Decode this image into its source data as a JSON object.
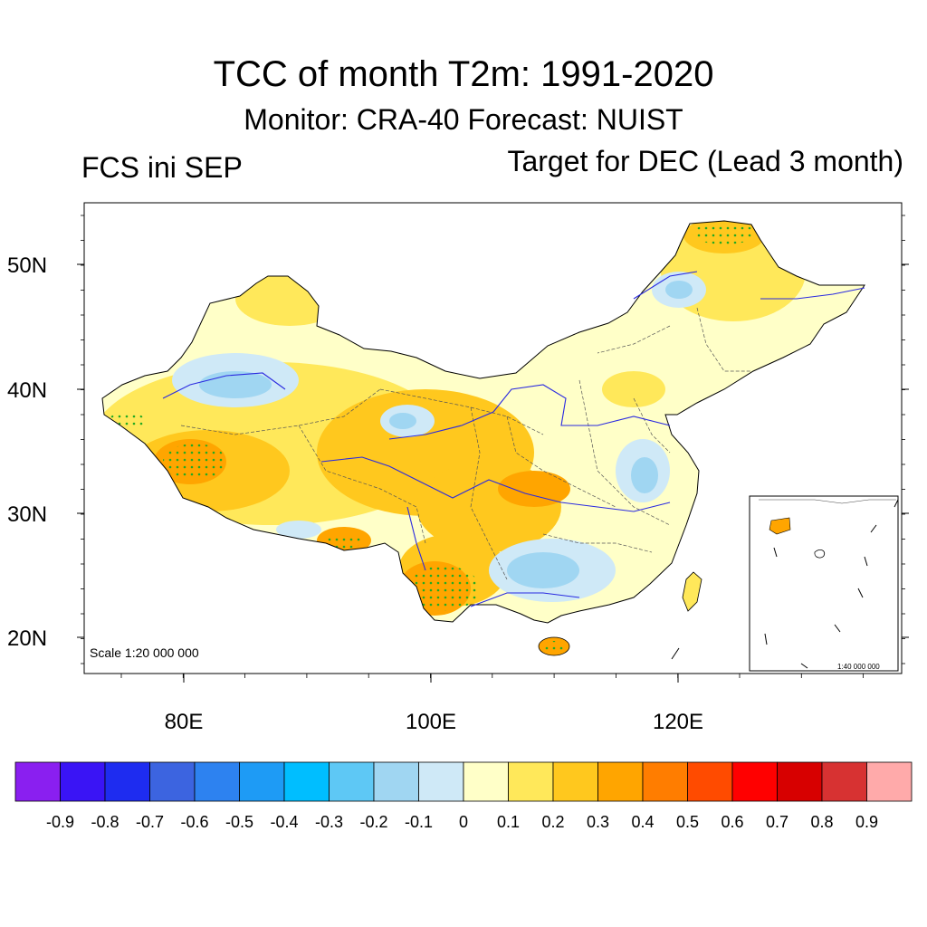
{
  "title": "TCC of month T2m: 1991-2020",
  "subtitle": "Monitor: CRA-40   Forecast: NUIST",
  "left_label": "FCS ini SEP",
  "right_label": "Target for DEC (Lead 3 month)",
  "map": {
    "scale_text": "Scale 1:20 000 000",
    "inset_scale_text": "1:40 000 000",
    "lat_ticks": [
      "50N",
      "40N",
      "30N",
      "20N"
    ],
    "lon_ticks": [
      "80E",
      "100E",
      "120E"
    ],
    "lat_range": [
      17,
      55
    ],
    "lon_range": [
      72,
      138
    ]
  },
  "colorbar": {
    "labels": [
      "-0.9",
      "-0.8",
      "-0.7",
      "-0.6",
      "-0.5",
      "-0.4",
      "-0.3",
      "-0.2",
      "-0.1",
      "0",
      "0.1",
      "0.2",
      "0.3",
      "0.4",
      "0.5",
      "0.6",
      "0.7",
      "0.8",
      "0.9"
    ],
    "colors": [
      "#8a1ff0",
      "#3a14f5",
      "#1e2cf0",
      "#3c64e0",
      "#2d82f0",
      "#1e9bf5",
      "#00beff",
      "#5ec8f5",
      "#a0d6f2",
      "#cfe9f7",
      "#ffffc8",
      "#ffe85a",
      "#ffc81e",
      "#ffa500",
      "#ff7d00",
      "#ff4b00",
      "#ff0000",
      "#d70000",
      "#d73232",
      "#ffaaaa"
    ]
  },
  "colors": {
    "river": "#2a2ae0",
    "stipple": "#22aa22",
    "border": "#000000"
  }
}
